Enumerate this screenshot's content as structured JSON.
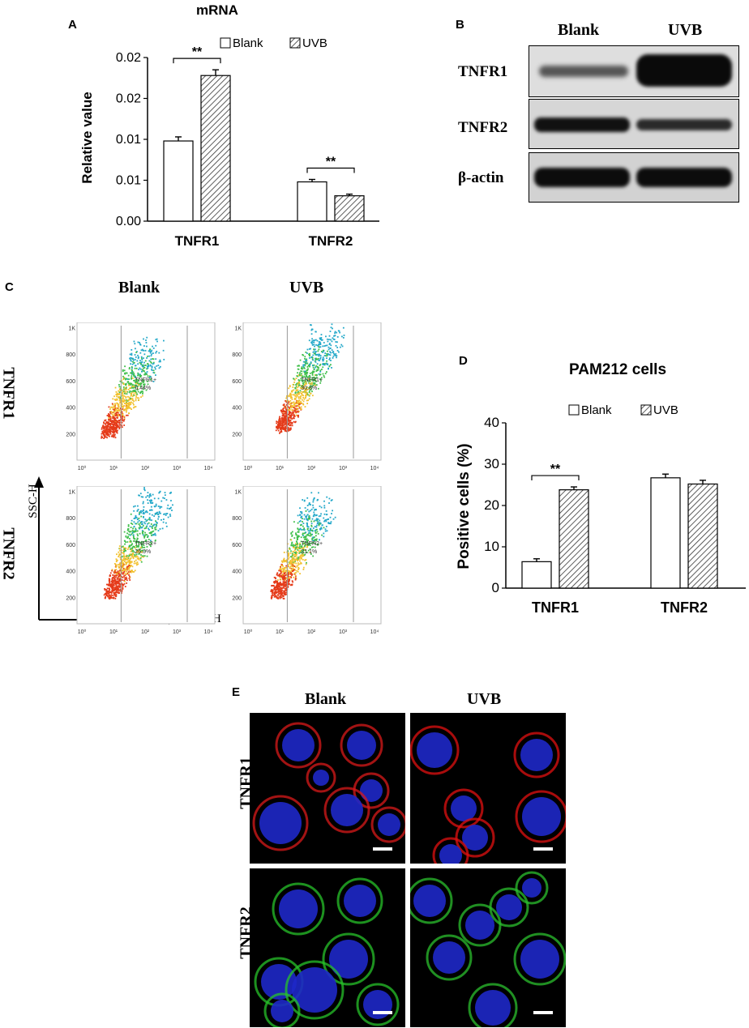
{
  "panel_a": {
    "letter": "A",
    "title": "mRNA",
    "legend": [
      "Blank",
      "UVB"
    ],
    "ylabel": "Relative value",
    "yticks": [
      "0.00",
      "0.01",
      "0.01",
      "0.02",
      "0.02"
    ],
    "categories": [
      "TNFR1",
      "TNFR2"
    ],
    "significance": [
      "**",
      "**"
    ]
  },
  "panel_b": {
    "letter": "B",
    "columns": [
      "Blank",
      "UVB"
    ],
    "rows": [
      "TNFR1",
      "TNFR2",
      "β-actin"
    ]
  },
  "panel_c": {
    "letter": "C",
    "columns": [
      "Blank",
      "UVB"
    ],
    "rows": [
      "TNFR1",
      "TNFR2"
    ],
    "y_axis": "SSC-H",
    "x_axis": "FL1-H",
    "gates": [
      {
        "label": "TNFR1+",
        "value": "6.44%"
      },
      {
        "label": "TNFR1+",
        "value": "30.8%"
      },
      {
        "label": "TNFR2+",
        "value": "26.0%"
      },
      {
        "label": "TNFR2+",
        "value": "21.1%"
      }
    ],
    "plot_yticks": [
      "200",
      "400",
      "600",
      "800",
      "1K"
    ],
    "plot_xticks": [
      "10⁰",
      "10¹",
      "10²",
      "10³",
      "10⁴"
    ]
  },
  "panel_d": {
    "letter": "D",
    "title": "PAM212 cells",
    "legend": [
      "Blank",
      "UVB"
    ],
    "ylabel": "Positive cells (%)",
    "yticks": [
      "0",
      "10",
      "20",
      "30",
      "40"
    ],
    "categories": [
      "TNFR1",
      "TNFR2"
    ],
    "significance": [
      "**"
    ]
  },
  "panel_e": {
    "letter": "E",
    "columns": [
      "Blank",
      "UVB"
    ],
    "rows": [
      "TNFR1",
      "TNFR2"
    ]
  },
  "chart_data": [
    {
      "type": "bar",
      "title": "mRNA",
      "ylabel": "Relative value",
      "categories": [
        "TNFR1",
        "TNFR2"
      ],
      "series": [
        {
          "name": "Blank",
          "values": [
            0.0098,
            0.0048
          ],
          "errors": [
            0.0005,
            0.0003
          ]
        },
        {
          "name": "UVB",
          "values": [
            0.0178,
            0.0031
          ],
          "errors": [
            0.0007,
            0.0002
          ]
        }
      ],
      "ylim": [
        0,
        0.02
      ],
      "grid": false,
      "legend": "top"
    },
    {
      "type": "bar",
      "title": "PAM212 cells",
      "ylabel": "Positive cells (%)",
      "categories": [
        "TNFR1",
        "TNFR2"
      ],
      "series": [
        {
          "name": "Blank",
          "values": [
            6.4,
            26.7
          ],
          "errors": [
            0.7,
            0.9
          ]
        },
        {
          "name": "UVB",
          "values": [
            23.8,
            25.2
          ],
          "errors": [
            0.7,
            0.9
          ]
        }
      ],
      "ylim": [
        0,
        40
      ],
      "grid": false,
      "legend": "top"
    }
  ]
}
